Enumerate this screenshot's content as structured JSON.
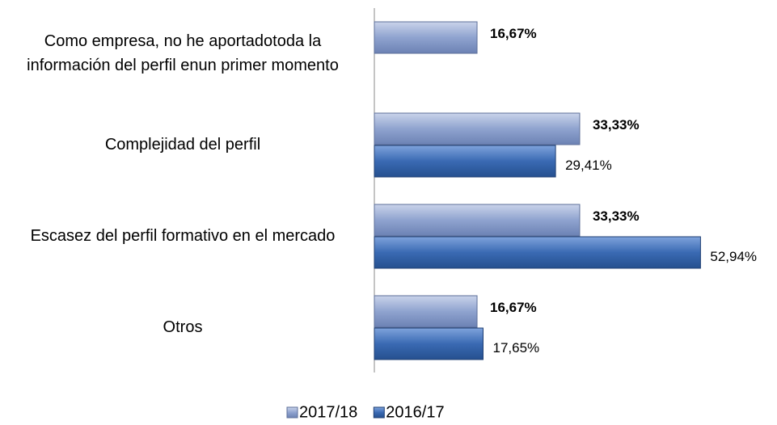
{
  "chart_data": {
    "type": "bar",
    "orientation": "horizontal",
    "categories": [
      "Como empresa, no he aportadotoda la información del perfil enun primer momento",
      "Complejidad del perfil",
      "Escasez del perfil formativo en el mercado",
      "Otros"
    ],
    "series": [
      {
        "name": "2017/18",
        "color": "#8fa3cf",
        "values": [
          16.67,
          33.33,
          33.33,
          16.67
        ],
        "value_labels": [
          "16,67%",
          "33,33%",
          "33,33%",
          "16,67%"
        ]
      },
      {
        "name": "2016/17",
        "color": "#3a6ab3",
        "values": [
          null,
          29.41,
          52.94,
          17.65
        ],
        "value_labels": [
          null,
          "29,41%",
          "52,94%",
          "17,65%"
        ]
      }
    ],
    "legend": "bottom"
  }
}
